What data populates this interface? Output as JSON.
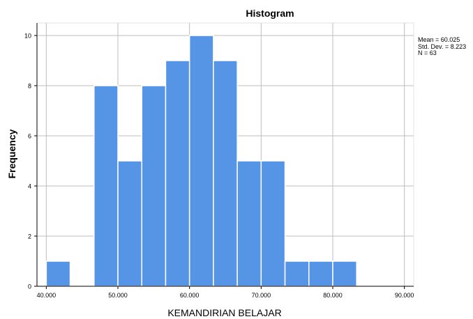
{
  "chart_data": {
    "type": "bar",
    "title": "Histogram",
    "xlabel": "KEMANDIRIAN BELAJAR",
    "ylabel": "Frequency",
    "bins": [
      {
        "x0": 40.0,
        "x1": 43.333,
        "count": 1
      },
      {
        "x0": 43.333,
        "x1": 46.667,
        "count": 0
      },
      {
        "x0": 46.667,
        "x1": 50.0,
        "count": 8
      },
      {
        "x0": 50.0,
        "x1": 53.333,
        "count": 5
      },
      {
        "x0": 53.333,
        "x1": 56.667,
        "count": 8
      },
      {
        "x0": 56.667,
        "x1": 60.0,
        "count": 9
      },
      {
        "x0": 60.0,
        "x1": 63.333,
        "count": 10
      },
      {
        "x0": 63.333,
        "x1": 66.667,
        "count": 9
      },
      {
        "x0": 66.667,
        "x1": 70.0,
        "count": 5
      },
      {
        "x0": 70.0,
        "x1": 73.333,
        "count": 5
      },
      {
        "x0": 73.333,
        "x1": 76.667,
        "count": 1
      },
      {
        "x0": 76.667,
        "x1": 80.0,
        "count": 1
      },
      {
        "x0": 80.0,
        "x1": 83.333,
        "count": 1
      }
    ],
    "xlim": [
      38.7,
      91.3
    ],
    "ylim": [
      0,
      10.5
    ],
    "x_ticks": [
      40,
      50,
      60,
      70,
      80,
      90
    ],
    "x_tick_labels": [
      "40.000",
      "50.000",
      "60.000",
      "70.000",
      "80.000",
      "90.000"
    ],
    "y_ticks": [
      0,
      2,
      4,
      6,
      8,
      10
    ],
    "y_tick_labels": [
      "0",
      "2",
      "4",
      "6",
      "8",
      "10"
    ],
    "grid": true,
    "stats": {
      "mean": "Mean = 60.025",
      "std_dev": "Std. Dev. = 8.223",
      "n": "N = 63"
    },
    "colors": {
      "bar": "#5694e5",
      "bar_edge": "#ffffff",
      "grid": "#bdbdbd",
      "axis": "#000000"
    }
  }
}
